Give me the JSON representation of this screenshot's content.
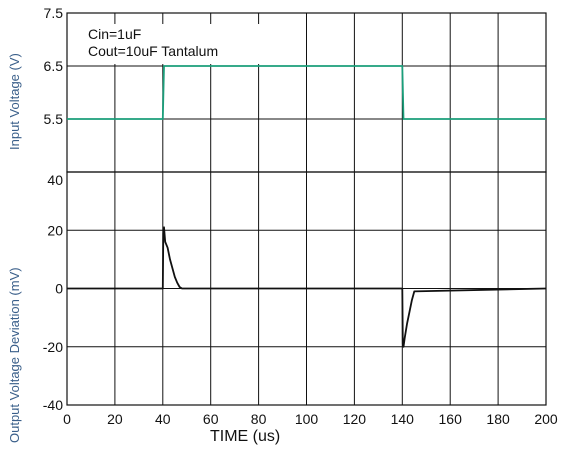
{
  "chart_data": [
    {
      "type": "line",
      "title": "",
      "xlabel": "",
      "ylabel": "Input Voltage (V)",
      "xlim": [
        0,
        200
      ],
      "ylim": [
        4.5,
        7.5
      ],
      "y_ticks": [
        "7.5",
        "6.5",
        "5.5"
      ],
      "grid": true,
      "legend": {
        "placement": "top-left",
        "entries": [
          "Cin=1uF",
          "Cout=10uF Tantalum"
        ]
      },
      "series": [
        {
          "color": "#1a9e7a",
          "x": [
            0,
            40,
            40.5,
            140,
            140.5,
            200
          ],
          "y": [
            5.5,
            5.5,
            6.5,
            6.5,
            5.5,
            5.5
          ]
        }
      ]
    },
    {
      "type": "line",
      "title": "",
      "xlabel": "TIME (us)",
      "ylabel": "Output Voltage Deviation (mV)",
      "xlim": [
        0,
        200
      ],
      "ylim": [
        -40,
        40
      ],
      "x_ticks": [
        "0",
        "20",
        "40",
        "60",
        "80",
        "100",
        "120",
        "140",
        "160",
        "180",
        "200"
      ],
      "y_ticks": [
        "40",
        "20",
        "0",
        "-20",
        "-40"
      ],
      "grid": true,
      "series": [
        {
          "color": "#111111",
          "x": [
            0,
            40,
            40.2,
            40.5,
            41,
            42,
            43,
            44,
            45,
            46,
            47,
            48,
            140,
            140.2,
            140.5,
            141,
            142,
            143,
            144,
            145,
            200
          ],
          "y": [
            0,
            0,
            19,
            21,
            16,
            14,
            10,
            7,
            4,
            2,
            0.5,
            0,
            0,
            -19,
            -20,
            -17,
            -12,
            -8,
            -4,
            -1,
            0
          ]
        }
      ]
    }
  ]
}
